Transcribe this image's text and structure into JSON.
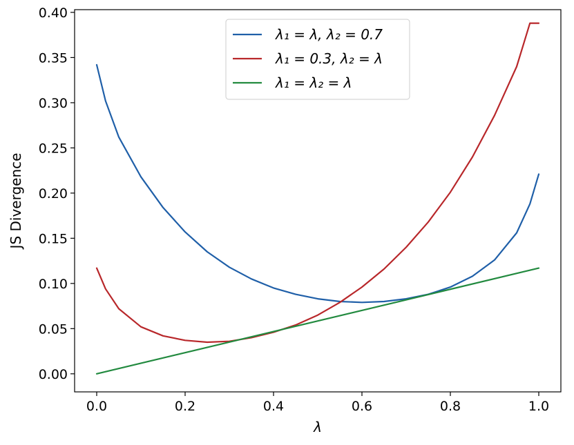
{
  "chart_data": {
    "type": "line",
    "xlabel": "λ",
    "ylabel": "JS Divergence",
    "xlim": [
      -0.05,
      1.05
    ],
    "ylim": [
      -0.02,
      0.403
    ],
    "xticks": [
      "0.0",
      "0.2",
      "0.4",
      "0.6",
      "0.8",
      "1.0"
    ],
    "yticks": [
      "0.00",
      "0.05",
      "0.10",
      "0.15",
      "0.20",
      "0.25",
      "0.30",
      "0.35",
      "0.40"
    ],
    "grid": false,
    "legend_position": "top-center",
    "series": [
      {
        "name": "λ₁ = λ, λ₂ = 0.7",
        "color": "#1f5fa8",
        "x": [
          0.0,
          0.02,
          0.05,
          0.1,
          0.15,
          0.2,
          0.25,
          0.3,
          0.35,
          0.4,
          0.45,
          0.5,
          0.55,
          0.6,
          0.65,
          0.7,
          0.75,
          0.8,
          0.85,
          0.9,
          0.95,
          0.98,
          1.0
        ],
        "values": [
          0.342,
          0.302,
          0.262,
          0.218,
          0.184,
          0.157,
          0.135,
          0.118,
          0.105,
          0.095,
          0.088,
          0.083,
          0.08,
          0.079,
          0.08,
          0.083,
          0.088,
          0.096,
          0.108,
          0.126,
          0.156,
          0.188,
          0.221
        ]
      },
      {
        "name": "λ₁ = 0.3, λ₂ = λ",
        "color": "#b8272a",
        "x": [
          0.0,
          0.02,
          0.05,
          0.1,
          0.15,
          0.2,
          0.25,
          0.3,
          0.35,
          0.4,
          0.45,
          0.5,
          0.55,
          0.6,
          0.65,
          0.7,
          0.75,
          0.8,
          0.85,
          0.9,
          0.95,
          0.98,
          1.0
        ],
        "values": [
          0.117,
          0.094,
          0.072,
          0.052,
          0.042,
          0.037,
          0.035,
          0.036,
          0.04,
          0.046,
          0.054,
          0.065,
          0.079,
          0.096,
          0.116,
          0.14,
          0.168,
          0.201,
          0.24,
          0.286,
          0.34,
          0.388,
          0.388
        ]
      },
      {
        "name": "λ₁ = λ₂ = λ",
        "color": "#228a3f",
        "x": [
          0.0,
          1.0
        ],
        "values": [
          0.0,
          0.117
        ]
      }
    ]
  }
}
